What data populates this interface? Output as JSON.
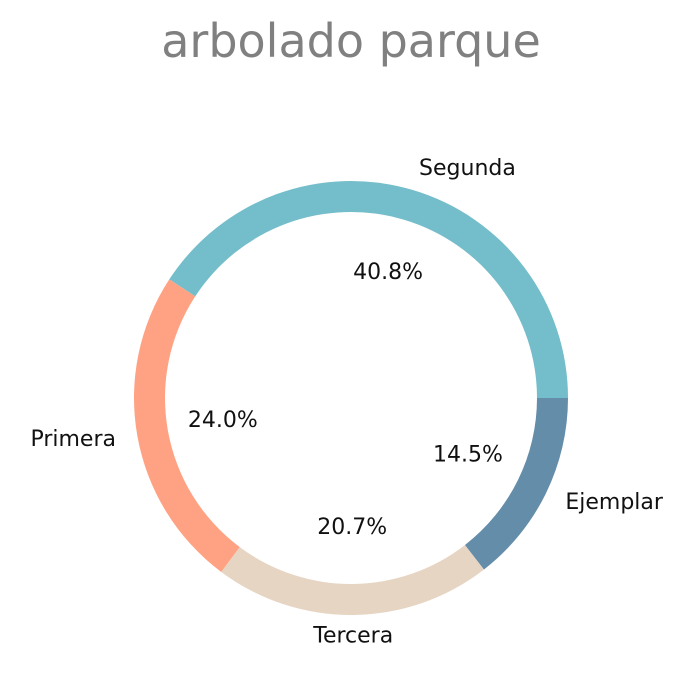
{
  "chart_data": {
    "type": "pie",
    "title": "arbolado parque",
    "categories": [
      "Segunda",
      "Primera",
      "Tercera",
      "Ejemplar"
    ],
    "values": [
      40.8,
      24.0,
      20.7,
      14.5
    ],
    "value_labels": [
      "40.8%",
      "24.0%",
      "20.7%",
      "14.5%"
    ],
    "colors": [
      "#74bdca",
      "#ffa283",
      "#e7d5c3",
      "#648daa"
    ],
    "start_angle_deg": 0,
    "direction": "counterclockwise",
    "donut": true,
    "legend": "none"
  }
}
